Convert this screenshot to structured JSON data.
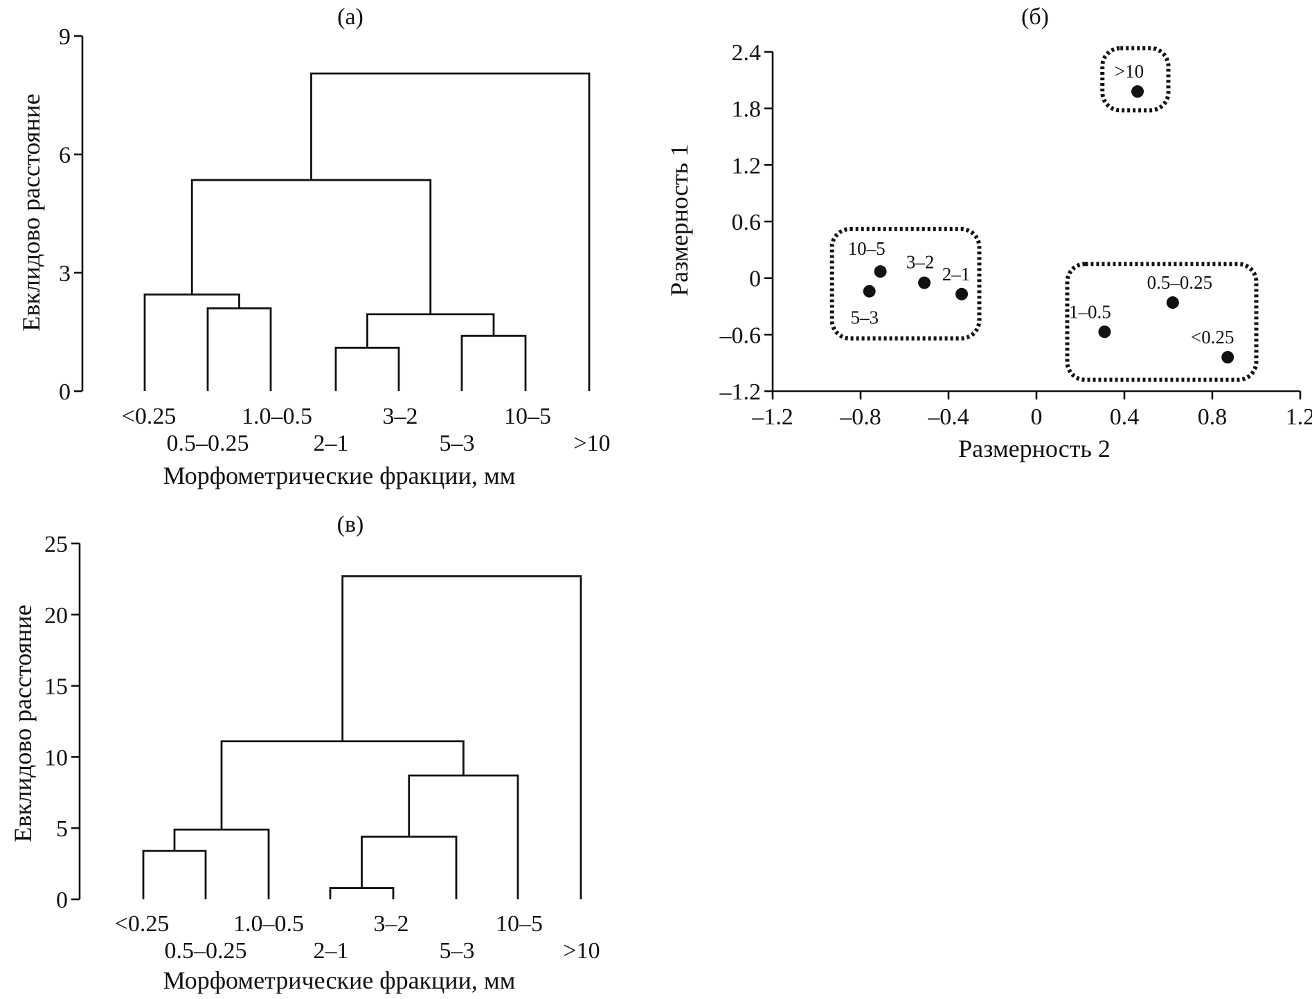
{
  "chart_data": [
    {
      "panel": "(а)",
      "type": "dendrogram",
      "ylabel": "Евклидово расстояние",
      "xlabel": "Морфометрические фракции, мм",
      "ylim": [
        0,
        9
      ],
      "yticks": [
        0,
        3,
        6,
        9
      ],
      "leaves": [
        "<0.25",
        "0.5–0.25",
        "1.0–0.5",
        "2–1",
        "3–2",
        "5–3",
        "10–5",
        ">10"
      ],
      "merges": [
        {
          "a": "0.5–0.25",
          "b": "1.0–0.5",
          "height": 2.1
        },
        {
          "a": "<0.25",
          "b": "0.5–0.25 + 1.0–0.5",
          "height": 2.45
        },
        {
          "a": "2–1",
          "b": "3–2",
          "height": 1.1
        },
        {
          "a": "5–3",
          "b": "10–5",
          "height": 1.4
        },
        {
          "a": "2–1 + 3–2",
          "b": "5–3 + 10–5",
          "height": 1.95
        },
        {
          "a": "<0.25 … 1.0–0.5",
          "b": "2–1 … 10–5",
          "height": 5.35
        },
        {
          "a": "<0.25 … 10–5",
          "b": ">10",
          "height": 8.05
        }
      ]
    },
    {
      "panel": "(б)",
      "type": "scatter",
      "xlabel": "Размерность 2",
      "ylabel": "Размерность 1",
      "xlim": [
        -1.2,
        1.2
      ],
      "ylim": [
        -1.2,
        2.4
      ],
      "xticks": [
        -1.2,
        -0.8,
        -0.4,
        0,
        0.4,
        0.8,
        1.2
      ],
      "yticks": [
        -1.2,
        -0.6,
        0,
        0.6,
        1.2,
        1.8,
        2.4
      ],
      "xtick_labels": [
        "–1.2",
        "–0.8",
        "–0.4",
        "0",
        "0.4",
        "0.8",
        "1.2"
      ],
      "ytick_labels": [
        "–1.2",
        "–0.6",
        "0",
        "0.6",
        "1.2",
        "1.8",
        "2.4"
      ],
      "points": [
        {
          "label": "10–5",
          "x": -0.71,
          "y": 0.07
        },
        {
          "label": "5–3",
          "x": -0.76,
          "y": -0.14
        },
        {
          "label": "3–2",
          "x": -0.51,
          "y": -0.05
        },
        {
          "label": "2–1",
          "x": -0.34,
          "y": -0.17
        },
        {
          "label": ">10",
          "x": 0.46,
          "y": 1.98
        },
        {
          "label": "0.5–0.25",
          "x": 0.62,
          "y": -0.26
        },
        {
          "label": "1–0.5",
          "x": 0.31,
          "y": -0.57
        },
        {
          "label": "<0.25",
          "x": 0.87,
          "y": -0.84
        }
      ],
      "clusters": [
        {
          "members": [
            "10–5",
            "5–3",
            "3–2",
            "2–1"
          ],
          "x": [
            -0.93,
            -0.26
          ],
          "y": [
            -0.64,
            0.52
          ]
        },
        {
          "members": [
            ">10"
          ],
          "x": [
            0.3,
            0.6
          ],
          "y": [
            1.78,
            2.44
          ]
        },
        {
          "members": [
            "0.5–0.25",
            "1–0.5",
            "<0.25"
          ],
          "x": [
            0.14,
            1.0
          ],
          "y": [
            -1.08,
            0.15
          ]
        }
      ]
    },
    {
      "panel": "(в)",
      "type": "dendrogram",
      "ylabel": "Евклидово расстояние",
      "xlabel": "Морфометрические фракции, мм",
      "ylim": [
        0,
        25
      ],
      "yticks": [
        0,
        5,
        10,
        15,
        20,
        25
      ],
      "leaves": [
        "<0.25",
        "0.5–0.25",
        "1.0–0.5",
        "2–1",
        "3–2",
        "5–3",
        "10–5",
        ">10"
      ],
      "merges": [
        {
          "a": "<0.25",
          "b": "0.5–0.25",
          "height": 3.4
        },
        {
          "a": "<0.25 + 0.5–0.25",
          "b": "1.0–0.5",
          "height": 4.9
        },
        {
          "a": "2–1",
          "b": "3–2",
          "height": 0.8
        },
        {
          "a": "2–1 + 3–2",
          "b": "5–3",
          "height": 4.4
        },
        {
          "a": "2–1 … 5–3",
          "b": "10–5",
          "height": 8.7
        },
        {
          "a": "<0.25 … 1.0–0.5",
          "b": "2–1 … 10–5",
          "height": 11.1
        },
        {
          "a": "<0.25 … 10–5",
          "b": ">10",
          "height": 22.7
        }
      ]
    }
  ]
}
